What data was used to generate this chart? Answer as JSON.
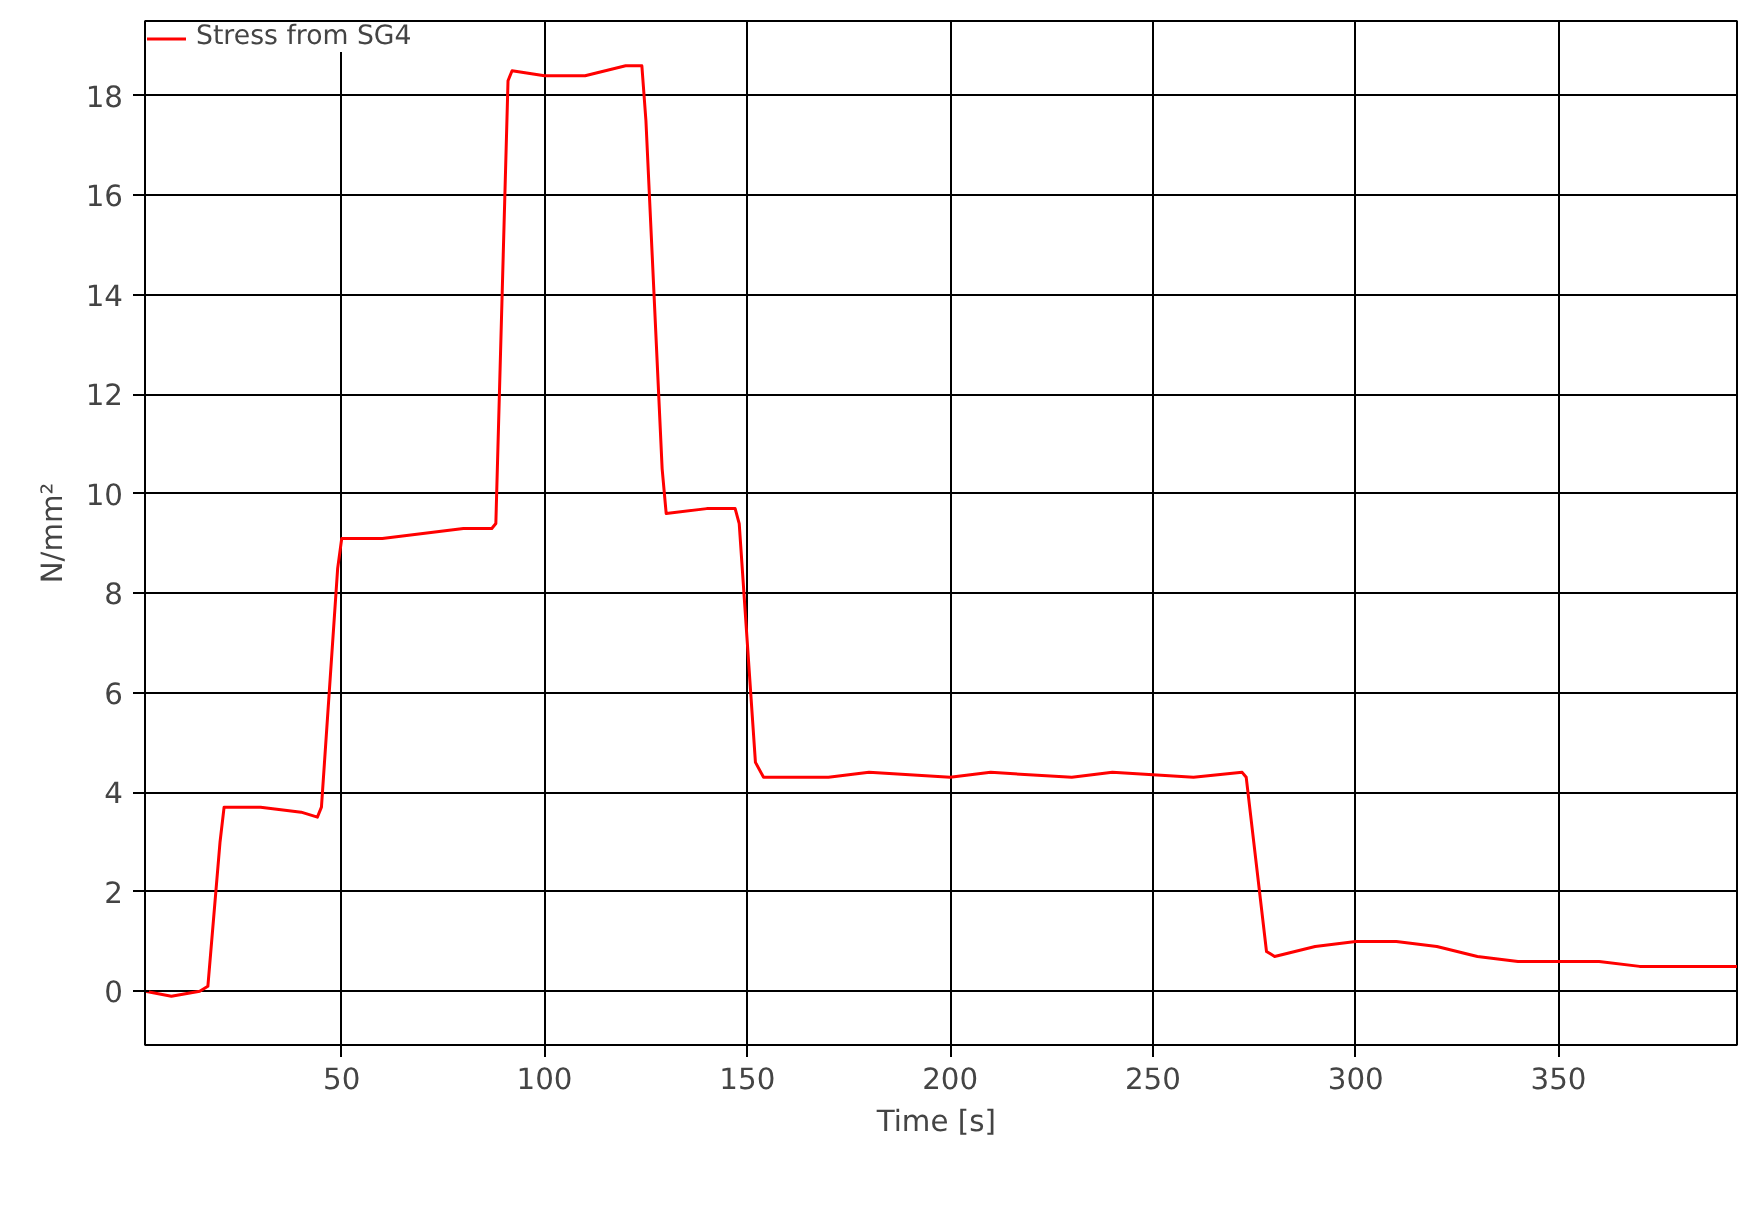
{
  "chart_data": {
    "type": "line",
    "xlabel": "Time  [s]",
    "ylabel": "N/mm²",
    "xlim": [
      1.5,
      394
    ],
    "ylim": [
      -1.08,
      19.5
    ],
    "xticks": [
      50,
      100,
      150,
      200,
      250,
      300,
      350
    ],
    "yticks": [
      0,
      2,
      4,
      6,
      8,
      10,
      12,
      14,
      16,
      18
    ],
    "grid": true,
    "legend": "top left",
    "line_style": "solid",
    "x": [
      1.5,
      8,
      15,
      17,
      20,
      21,
      30,
      40,
      44,
      45,
      49,
      50,
      60,
      70,
      80,
      87,
      88,
      91,
      92,
      100,
      110,
      120,
      124,
      125,
      129,
      130,
      140,
      147,
      148,
      152,
      154,
      170,
      180,
      200,
      210,
      230,
      240,
      260,
      272,
      273,
      278,
      280,
      290,
      300,
      310,
      320,
      330,
      340,
      350,
      360,
      370,
      380,
      394
    ],
    "series": [
      {
        "name": "Stress from SG4",
        "color": "#ff0000",
        "values": [
          0.0,
          -0.1,
          0.0,
          0.1,
          3.0,
          3.7,
          3.7,
          3.6,
          3.5,
          3.7,
          8.5,
          9.1,
          9.1,
          9.2,
          9.3,
          9.3,
          9.4,
          18.3,
          18.5,
          18.4,
          18.4,
          18.6,
          18.6,
          17.5,
          10.5,
          9.6,
          9.7,
          9.7,
          9.4,
          4.6,
          4.3,
          4.3,
          4.4,
          4.3,
          4.4,
          4.3,
          4.4,
          4.3,
          4.4,
          4.3,
          0.8,
          0.7,
          0.9,
          1.0,
          1.0,
          0.9,
          0.7,
          0.6,
          0.6,
          0.6,
          0.5,
          0.5,
          0.5
        ]
      }
    ]
  }
}
